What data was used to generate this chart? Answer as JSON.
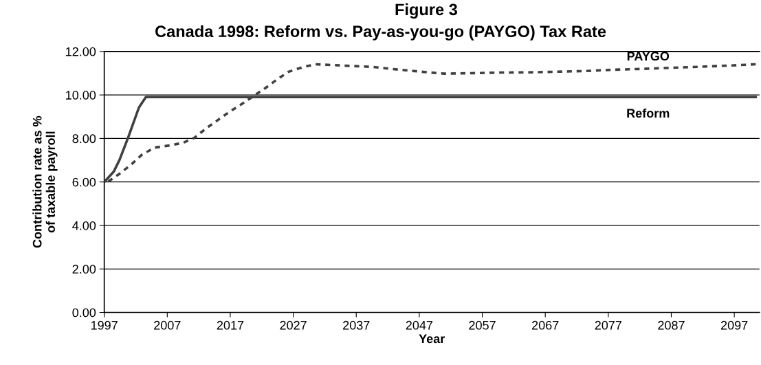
{
  "chart_data": {
    "type": "line",
    "title": "Figure 3",
    "subtitle": "Canada 1998: Reform vs. Pay-as-you-go (PAYGO) Tax Rate",
    "xlabel": "Year",
    "ylabel": "Contribution rate as %\nof taxable payroll",
    "series": [
      {
        "name": "PAYGO",
        "color": "#404040",
        "line_style": "dashed",
        "x": [
          1997,
          1999.4,
          2001.2,
          2003,
          2005,
          2007.4,
          2009.5,
          2011.3,
          2013.2,
          2015,
          2016.8,
          2018.8,
          2020.8,
          2022.6,
          2024.4,
          2026.2,
          2028.4,
          2030.5,
          2032.9,
          2035,
          2039.5,
          2043.9,
          2048.4,
          2050.9,
          2055.1,
          2059.7,
          2064.3,
          2069,
          2073.4,
          2077.8,
          2082.5,
          2087.1,
          2091.7,
          2096,
          2100.4
        ],
        "values": [
          5.9,
          6.37,
          6.78,
          7.26,
          7.58,
          7.68,
          7.8,
          8.03,
          8.47,
          8.84,
          9.21,
          9.58,
          9.97,
          10.32,
          10.71,
          11.06,
          11.27,
          11.41,
          11.38,
          11.35,
          11.29,
          11.16,
          11.04,
          10.98,
          11.0,
          11.03,
          11.04,
          11.07,
          11.1,
          11.16,
          11.2,
          11.25,
          11.3,
          11.35,
          11.41
        ]
      },
      {
        "name": "Reform",
        "color": "#404040",
        "line_style": "solid",
        "x": [
          1997,
          1998.5,
          1999.4,
          2000.8,
          2002.5,
          2003.6,
          2100.4
        ],
        "values": [
          6.0,
          6.47,
          7.0,
          8.05,
          9.42,
          9.9,
          9.9
        ]
      }
    ],
    "xlim": [
      1997,
      2101
    ],
    "xticks": [
      1997,
      2007,
      2017,
      2027,
      2037,
      2047,
      2057,
      2067,
      2077,
      2087,
      2097
    ],
    "ylim": [
      0,
      12
    ],
    "yticks": [
      {
        "value": 0,
        "label": "0.00"
      },
      {
        "value": 2,
        "label": "2.00"
      },
      {
        "value": 4,
        "label": "4.00"
      },
      {
        "value": 6,
        "label": "6.00"
      },
      {
        "value": 8,
        "label": "8.00"
      },
      {
        "value": 10,
        "label": "10.00"
      },
      {
        "value": 12,
        "label": "12.00"
      }
    ],
    "grid": "y",
    "legend": false,
    "marker": "none"
  }
}
